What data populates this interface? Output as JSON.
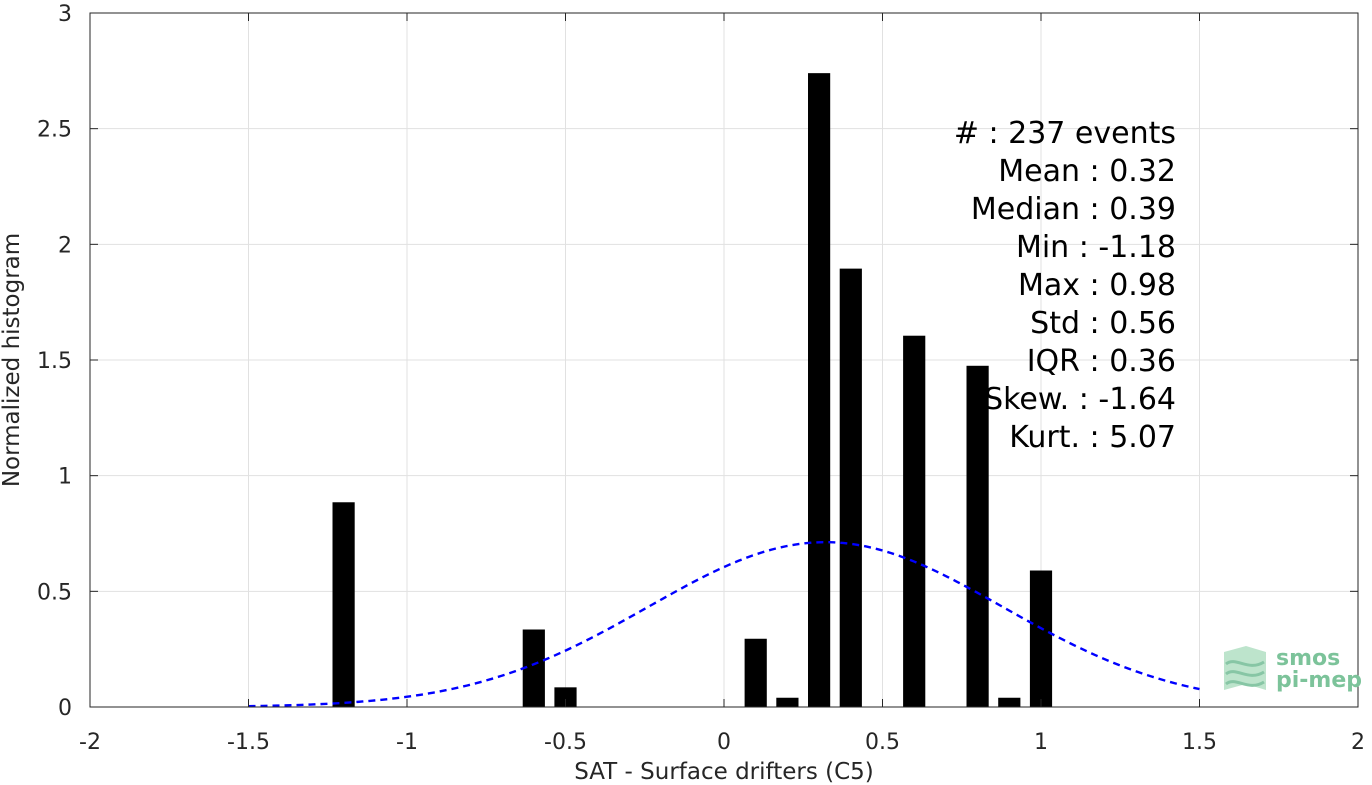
{
  "chart_data": {
    "type": "bar",
    "title": "",
    "xlabel": "SAT - Surface drifters (C5)",
    "ylabel": "Normalized histogram",
    "xlim": [
      -2,
      2
    ],
    "ylim": [
      0,
      3
    ],
    "xticks": [
      -2,
      -1.5,
      -1,
      -0.5,
      0,
      0.5,
      1,
      1.5,
      2
    ],
    "xtick_labels": [
      "-2",
      "-1.5",
      "-1",
      "-0.5",
      "0",
      "0.5",
      "1",
      "1.5",
      "2"
    ],
    "yticks": [
      0,
      0.5,
      1,
      1.5,
      2,
      2.5,
      3
    ],
    "ytick_labels": [
      "0",
      "0.5",
      "1",
      "1.5",
      "2",
      "2.5",
      "3"
    ],
    "grid": true,
    "bar_width": 0.07,
    "bars": [
      {
        "x": -1.2,
        "value": 0.885
      },
      {
        "x": -0.6,
        "value": 0.335
      },
      {
        "x": -0.5,
        "value": 0.085
      },
      {
        "x": 0.1,
        "value": 0.295
      },
      {
        "x": 0.2,
        "value": 0.04
      },
      {
        "x": 0.3,
        "value": 2.74
      },
      {
        "x": 0.4,
        "value": 1.895
      },
      {
        "x": 0.6,
        "value": 1.605
      },
      {
        "x": 0.8,
        "value": 1.475
      },
      {
        "x": 0.9,
        "value": 0.04
      },
      {
        "x": 1.0,
        "value": 0.59
      }
    ],
    "bar_color": "#000000",
    "fit_curve": {
      "style": "dashed",
      "color": "#0000ff",
      "mean": 0.32,
      "std": 0.56,
      "x_range": [
        -1.5,
        1.5
      ]
    },
    "stats_box": {
      "lines": [
        "#  : 237 events",
        "Mean : 0.32",
        "Median : 0.39",
        "Min : -1.18",
        "Max : 0.98",
        "Std : 0.56",
        "IQR : 0.36",
        "Skew. : -1.64",
        "Kurt. : 5.07"
      ]
    }
  },
  "logo": {
    "line1": "smos",
    "line2": "pi-mep",
    "color": "#7cc39a"
  }
}
